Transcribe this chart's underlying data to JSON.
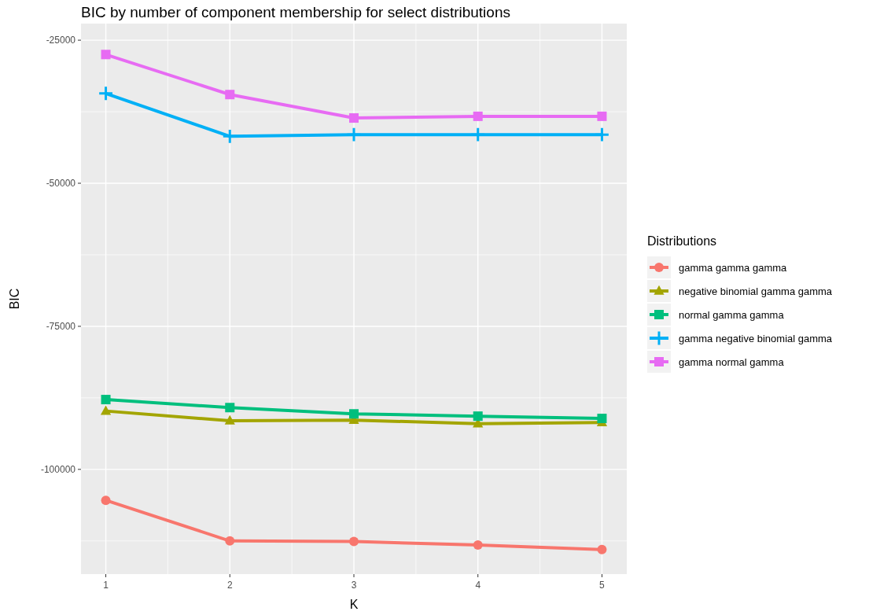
{
  "chart_data": {
    "type": "line",
    "title": "BIC by number of component membership for select distributions",
    "xlabel": "K",
    "ylabel": "BIC",
    "legend_title": "Distributions",
    "legend": "right",
    "grid": true,
    "x": [
      1,
      2,
      3,
      4,
      5
    ],
    "xlim": [
      0.8,
      5.2
    ],
    "xticks": [
      1,
      2,
      3,
      4,
      5
    ],
    "ylim": [
      -118300,
      -22100
    ],
    "yticks": [
      -25000,
      -50000,
      -75000,
      -100000
    ],
    "series": [
      {
        "name": "gamma gamma gamma",
        "color": "#f8766d",
        "marker": "circle",
        "values": [
          -105400,
          -112500,
          -112600,
          -113200,
          -114000
        ]
      },
      {
        "name": "negative binomial gamma gamma",
        "color": "#a3a500",
        "marker": "triangle",
        "values": [
          -89800,
          -91500,
          -91400,
          -92000,
          -91800
        ]
      },
      {
        "name": "normal gamma gamma",
        "color": "#00bf7d",
        "marker": "square",
        "values": [
          -87800,
          -89200,
          -90300,
          -90700,
          -91100
        ]
      },
      {
        "name": "gamma negative binomial gamma",
        "color": "#00b0f6",
        "marker": "cross",
        "values": [
          -34300,
          -41800,
          -41500,
          -41500,
          -41500
        ]
      },
      {
        "name": "gamma normal gamma",
        "color": "#e76bf3",
        "marker": "square",
        "values": [
          -27500,
          -34500,
          -38600,
          -38300,
          -38300
        ]
      }
    ]
  }
}
